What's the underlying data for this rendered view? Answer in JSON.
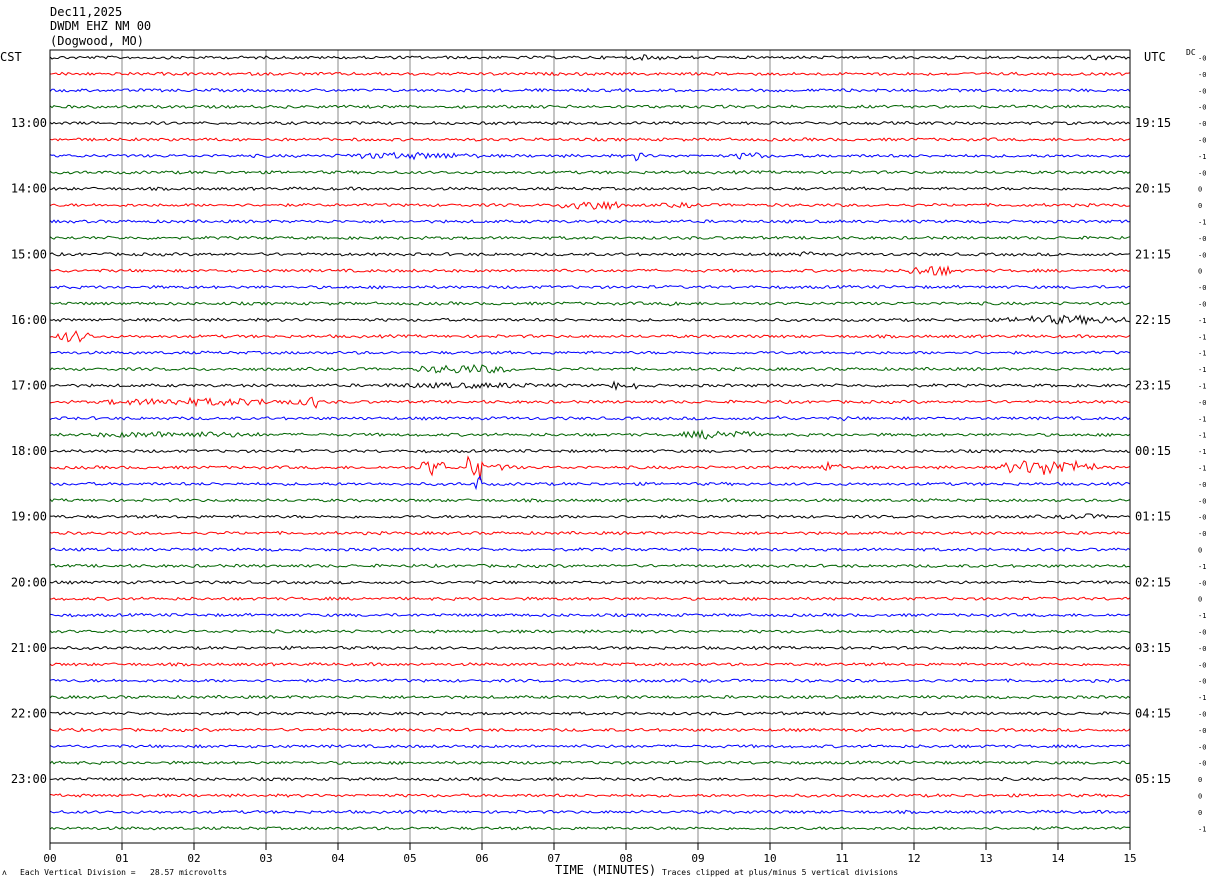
{
  "header": {
    "date": "Dec11,2025",
    "station": "DWDM EHZ NM 00",
    "location": "(Dogwood, MO)"
  },
  "left_tz": "CST",
  "right_tz": "UTC",
  "dc_label": "DC",
  "footer": {
    "symbol": "ᴧ",
    "scale_text": "Each Vertical Division =   28.57 microvolts",
    "clip_text": "Traces clipped at plus/minus 5 vertical divisions"
  },
  "chart_data": {
    "type": "line",
    "title": "",
    "xlabel": "TIME (MINUTES)",
    "ylabel": "",
    "xlim": [
      0,
      15
    ],
    "x_ticks": [
      "00",
      "01",
      "02",
      "03",
      "04",
      "05",
      "06",
      "07",
      "08",
      "09",
      "10",
      "11",
      "12",
      "13",
      "14",
      "15"
    ],
    "trace_count": 48,
    "trace_minutes": 15,
    "trace_colors": [
      "#000000",
      "#ff0000",
      "#0000ff",
      "#006400"
    ],
    "left_hour_labels": [
      "13:00",
      "14:00",
      "15:00",
      "16:00",
      "17:00",
      "18:00",
      "19:00",
      "20:00",
      "21:00",
      "22:00",
      "23:00"
    ],
    "right_hour_labels": [
      "19:15",
      "20:15",
      "21:15",
      "22:15",
      "23:15",
      "00:15",
      "01:15",
      "02:15",
      "03:15",
      "04:15",
      "05:15"
    ],
    "dc_offsets": [
      "-0",
      "-0",
      "-0",
      "-0",
      "-0",
      "-0",
      "-1",
      "-0",
      "0",
      "0",
      "-1",
      "-0",
      "-0",
      "0",
      "-0",
      "-0",
      "-1",
      "-1",
      "-1",
      "-1",
      "-1",
      "-0",
      "-1",
      "-1",
      "-1",
      "-1",
      "-0",
      "-0",
      "-0",
      "-0",
      "0",
      "-1",
      "-0",
      "0",
      "-1",
      "-0",
      "-0",
      "-0",
      "-0",
      "-1",
      "-0",
      "-0",
      "-0",
      "-0",
      "0",
      "0",
      "0",
      "-1"
    ],
    "events": [
      {
        "trace": 0,
        "start_min": 8.0,
        "end_min": 8.6,
        "amp": 1.8
      },
      {
        "trace": 0,
        "start_min": 14.1,
        "end_min": 14.8,
        "amp": 1.7
      },
      {
        "trace": 6,
        "start_min": 4.0,
        "end_min": 6.0,
        "amp": 2.2
      },
      {
        "trace": 6,
        "start_min": 8.1,
        "end_min": 8.3,
        "amp": 4.0
      },
      {
        "trace": 6,
        "start_min": 9.5,
        "end_min": 9.9,
        "amp": 2.6
      },
      {
        "trace": 9,
        "start_min": 7.1,
        "end_min": 7.9,
        "amp": 3.6
      },
      {
        "trace": 9,
        "start_min": 8.4,
        "end_min": 9.2,
        "amp": 1.6
      },
      {
        "trace": 12,
        "start_min": 10.4,
        "end_min": 10.6,
        "amp": 2.0
      },
      {
        "trace": 13,
        "start_min": 11.9,
        "end_min": 12.6,
        "amp": 3.5
      },
      {
        "trace": 15,
        "start_min": 8.6,
        "end_min": 8.8,
        "amp": 2.4
      },
      {
        "trace": 16,
        "start_min": 13.3,
        "end_min": 15.0,
        "amp": 2.8
      },
      {
        "trace": 17,
        "start_min": 0.1,
        "end_min": 0.6,
        "amp": 3.6
      },
      {
        "trace": 19,
        "start_min": 5.1,
        "end_min": 6.4,
        "amp": 3.0
      },
      {
        "trace": 20,
        "start_min": 4.5,
        "end_min": 7.1,
        "amp": 1.8
      },
      {
        "trace": 20,
        "start_min": 7.8,
        "end_min": 7.9,
        "amp": 3.5
      },
      {
        "trace": 20,
        "start_min": 8.1,
        "end_min": 8.2,
        "amp": 3.0
      },
      {
        "trace": 21,
        "start_min": 0.7,
        "end_min": 3.5,
        "amp": 2.4
      },
      {
        "trace": 21,
        "start_min": 3.5,
        "end_min": 3.8,
        "amp": 4.0
      },
      {
        "trace": 22,
        "start_min": 10.1,
        "end_min": 10.2,
        "amp": 3.0
      },
      {
        "trace": 22,
        "start_min": 11.0,
        "end_min": 11.1,
        "amp": 2.0
      },
      {
        "trace": 23,
        "start_min": 0.5,
        "end_min": 3.0,
        "amp": 2.0
      },
      {
        "trace": 23,
        "start_min": 8.8,
        "end_min": 9.8,
        "amp": 3.0
      },
      {
        "trace": 25,
        "start_min": 5.1,
        "end_min": 5.5,
        "amp": 5.0
      },
      {
        "trace": 25,
        "start_min": 5.8,
        "end_min": 6.0,
        "amp": 12.0
      },
      {
        "trace": 25,
        "start_min": 6.0,
        "end_min": 6.5,
        "amp": 2.0
      },
      {
        "trace": 25,
        "start_min": 10.7,
        "end_min": 11.0,
        "amp": 3.5
      },
      {
        "trace": 25,
        "start_min": 13.2,
        "end_min": 14.5,
        "amp": 5.0
      },
      {
        "trace": 26,
        "start_min": 5.9,
        "end_min": 6.0,
        "amp": 6.0
      },
      {
        "trace": 28,
        "start_min": 14.0,
        "end_min": 14.7,
        "amp": 1.8
      }
    ]
  }
}
